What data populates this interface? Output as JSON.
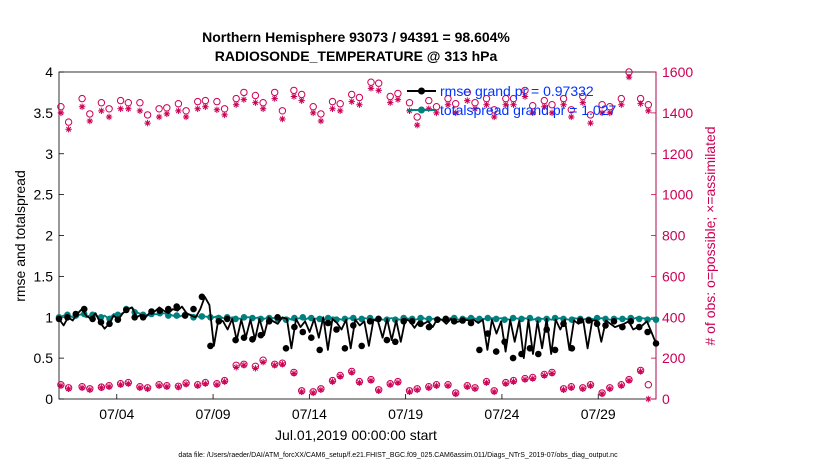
{
  "chart_data": {
    "type": "line",
    "title_line1": "Northern Hemisphere 93073 / 94391 = 98.604%",
    "title_line2": "RADIOSONDE_TEMPERATURE @ 313 hPa",
    "xlabel": "Jul.01,2019 00:00:00 start",
    "ylabel_left": "rmse and totalspread",
    "ylabel_right": "# of obs: o=possible; ×=assimilated",
    "footer": "data file: /Users/raeder/DAI/ATM_forcXX/CAM6_setup/f.e21.FHIST_BGC.f09_025.CAM6assim.011/Diags_NTrS_2019-07/obs_diag_output.nc",
    "xlim": [
      1,
      32
    ],
    "ylim_left": [
      0,
      4
    ],
    "ylim_right": [
      0,
      1600
    ],
    "x_ticks": [
      4,
      9,
      14,
      19,
      24,
      29
    ],
    "x_tick_labels": [
      "07/04",
      "07/09",
      "07/14",
      "07/19",
      "07/24",
      "07/29"
    ],
    "yticks_left": [
      "0",
      "0.5",
      "1",
      "1.5",
      "2",
      "2.5",
      "3",
      "3.5",
      "4"
    ],
    "yticks_right": [
      "0",
      "200",
      "400",
      "600",
      "800",
      "1000",
      "1200",
      "1400",
      "1600"
    ],
    "colors": {
      "rmse": "#000000",
      "spread": "#00807f",
      "obs": "#cc0055",
      "legend_text": "#0033ff"
    },
    "series": [
      {
        "name": "rmse",
        "legend": "rmse grand pr = 0.97332",
        "axis": "left",
        "values": [
          0.98,
          0.9,
          1.0,
          0.96,
          1.04,
          1.1,
          1.02,
          0.98,
          1.05,
          0.94,
          0.86,
          0.92,
          1.02,
          0.97,
          1.05,
          1.09,
          1.12,
          1.0,
          1.03,
          1.0,
          1.06,
          1.07,
          1.12,
          1.08,
          1.05,
          1.1,
          1.08,
          1.13,
          1.05,
          1.02,
          1.0,
          1.1,
          1.25,
          1.15,
          0.65,
          0.98,
          0.95,
          0.85,
          0.98,
          0.72,
          0.97,
          0.75,
          0.97,
          0.73,
          0.98,
          0.78,
          1.0,
          0.95,
          0.92,
          1.0,
          0.98,
          0.62,
          0.98,
          0.88,
          0.95,
          0.82,
          0.98,
          0.75,
          1.0,
          0.6,
          0.98,
          0.93,
          0.85,
          0.97,
          0.62,
          0.97,
          0.9,
          0.95,
          0.65,
          0.97,
          0.95,
          0.75,
          0.98,
          0.72,
          0.96,
          0.7,
          0.98,
          0.95,
          0.87,
          0.95,
          0.92,
          0.95,
          0.88,
          0.98,
          0.97,
          0.92,
          0.98,
          0.94,
          0.95,
          0.97,
          0.96,
          0.97,
          0.93,
          0.97,
          0.6,
          0.97,
          0.8,
          0.95,
          0.58,
          0.97,
          0.7,
          0.96,
          0.5,
          0.97,
          0.55,
          0.95,
          0.62,
          0.98,
          0.55,
          0.97,
          0.85,
          0.97,
          0.6,
          0.96,
          0.92,
          0.97,
          0.62,
          0.96,
          0.96,
          0.7,
          0.96,
          0.92,
          0.88,
          0.9,
          0.92,
          0.95,
          0.85,
          0.88,
          0.9,
          0.95,
          0.82,
          0.68
        ],
        "markers": [
          0.98,
          1.0,
          1.04,
          1.1,
          0.98,
          0.94,
          0.92,
          0.97,
          1.09,
          1.0,
          1.0,
          1.07,
          1.08,
          1.1,
          1.13,
          1.02,
          1.1,
          1.25,
          0.65,
          0.95,
          0.98,
          0.72,
          0.75,
          0.73,
          0.78,
          0.95,
          1.0,
          0.62,
          0.88,
          0.82,
          0.75,
          0.6,
          0.93,
          0.85,
          0.62,
          0.9,
          0.65,
          0.95,
          0.98,
          0.72,
          0.7,
          0.95,
          0.95,
          0.92,
          0.88,
          0.97,
          0.98,
          0.95,
          0.96,
          0.93,
          0.6,
          0.8,
          0.58,
          0.7,
          0.5,
          0.55,
          0.62,
          0.55,
          0.85,
          0.6,
          0.92,
          0.62,
          0.96,
          0.96,
          0.92,
          0.9,
          0.95,
          0.88,
          0.95,
          0.88,
          0.82,
          0.68
        ]
      },
      {
        "name": "totalspread",
        "legend": "totalspread grand pr = 1.027",
        "axis": "left",
        "values": [
          1.0,
          1.02,
          1.03,
          1.0,
          1.02,
          1.04,
          1.0,
          1.03,
          1.02,
          1.0,
          1.02,
          0.98,
          1.04,
          1.03,
          1.05,
          1.1,
          1.12,
          1.06,
          1.04,
          1.03,
          1.02,
          1.04,
          1.03,
          1.05,
          1.04,
          1.02,
          1.0,
          1.02,
          1.04,
          1.03,
          1.02,
          1.0,
          1.01,
          1.0,
          1.0,
          1.02,
          0.99,
          0.98,
          1.0,
          0.99,
          0.98,
          1.0,
          1.0,
          0.99,
          1.0,
          0.98,
          1.0,
          0.99,
          1.0,
          0.98,
          1.0,
          0.97,
          0.98,
          0.99,
          0.97,
          1.0,
          0.98,
          0.99,
          0.97,
          0.98,
          1.0,
          0.99,
          0.97,
          0.98,
          0.99,
          0.97,
          0.98,
          0.99,
          0.98,
          0.97,
          0.99,
          0.97,
          0.98,
          0.99,
          0.98,
          0.97,
          0.99,
          0.98,
          0.97,
          0.98,
          0.99,
          0.97,
          0.98,
          0.99,
          0.97,
          0.98,
          0.99,
          0.98,
          0.97,
          0.99,
          0.98,
          0.99,
          0.97,
          0.98,
          0.98,
          0.99,
          0.98,
          0.99,
          0.98,
          0.97,
          0.99,
          0.98,
          0.99,
          0.98,
          0.97,
          0.99,
          0.98,
          0.99,
          0.97,
          0.98,
          0.99,
          0.98,
          0.97,
          0.99,
          0.98,
          0.97,
          0.99,
          0.98,
          0.97,
          0.99,
          0.98,
          0.97,
          0.99,
          0.98,
          0.99,
          0.97,
          0.98,
          1.0,
          0.99,
          0.98,
          0.98,
          0.97
        ],
        "markers": [
          1.0,
          1.03,
          1.02,
          1.04,
          1.03,
          1.0,
          0.98,
          1.03,
          1.1,
          1.06,
          1.03,
          1.04,
          1.05,
          1.02,
          1.02,
          1.03,
          1.0,
          1.01,
          1.0,
          0.99,
          1.0,
          0.98,
          1.0,
          0.99,
          0.98,
          0.99,
          0.98,
          0.97,
          0.99,
          1.0,
          0.99,
          0.98,
          0.99,
          0.97,
          0.98,
          0.99,
          0.98,
          0.99,
          0.98,
          0.97,
          0.97,
          0.99,
          0.98,
          0.99,
          0.98,
          0.97,
          0.98,
          0.99,
          0.98,
          0.99,
          0.98,
          0.99,
          0.98,
          0.97,
          0.99,
          0.98,
          0.99,
          0.97,
          0.98,
          0.99,
          0.98,
          0.97,
          0.98,
          0.97,
          0.99,
          0.98,
          0.98,
          0.98,
          0.99,
          0.98,
          0.97,
          0.97
        ]
      },
      {
        "name": "obs_possible",
        "axis": "right",
        "marker": "circle",
        "x": [
          1.1,
          1.5,
          2.2,
          2.6,
          3.2,
          3.6,
          4.2,
          4.6,
          5.2,
          5.6,
          6.2,
          6.6,
          7.2,
          7.6,
          8.2,
          8.6,
          9.2,
          9.6,
          10.2,
          10.6,
          11.2,
          11.6,
          12.2,
          12.6,
          13.2,
          13.6,
          14.2,
          14.6,
          15.2,
          15.6,
          16.2,
          16.6,
          17.2,
          17.6,
          18.2,
          18.6,
          19.2,
          19.6,
          20.2,
          20.6,
          21.2,
          21.6,
          22.2,
          22.6,
          23.2,
          23.6,
          24.2,
          24.6,
          25.2,
          25.6,
          26.2,
          26.6,
          27.2,
          27.6,
          28.2,
          28.6,
          29.2,
          29.6,
          30.2,
          30.6,
          31.2,
          31.6
        ],
        "values": [
          1430,
          1355,
          1470,
          1395,
          1450,
          1420,
          1460,
          1450,
          1450,
          1390,
          1420,
          1425,
          1445,
          1410,
          1455,
          1460,
          1455,
          1420,
          1470,
          1500,
          1485,
          1450,
          1500,
          1410,
          1510,
          1490,
          1430,
          1395,
          1455,
          1445,
          1490,
          1475,
          1550,
          1545,
          1480,
          1495,
          1450,
          1380,
          1460,
          1430,
          1470,
          1445,
          1500,
          1450,
          1470,
          1415,
          1470,
          1470,
          1510,
          1435,
          1460,
          1440,
          1470,
          1415,
          1480,
          1390,
          1440,
          1430,
          1470,
          1600,
          1470,
          1440
        ],
        "low_x": [
          1.1,
          1.5,
          2.2,
          2.6,
          3.2,
          3.6,
          4.2,
          4.6,
          5.2,
          5.6,
          6.2,
          6.6,
          7.2,
          7.6,
          8.2,
          8.6,
          9.2,
          9.6,
          10.2,
          10.6,
          11.2,
          11.6,
          12.2,
          12.6,
          13.2,
          13.6,
          14.2,
          14.6,
          15.2,
          15.6,
          16.2,
          16.6,
          17.2,
          17.6,
          18.2,
          18.6,
          19.2,
          19.6,
          20.2,
          20.6,
          21.2,
          21.6,
          22.2,
          22.6,
          23.2,
          23.6,
          24.2,
          24.6,
          25.2,
          25.6,
          26.2,
          26.6,
          27.2,
          27.6,
          28.2,
          28.6,
          29.2,
          29.6,
          30.2,
          30.6,
          31.2,
          31.6
        ],
        "low_values": [
          70,
          55,
          60,
          50,
          58,
          65,
          75,
          80,
          60,
          55,
          70,
          65,
          62,
          78,
          70,
          80,
          75,
          90,
          165,
          170,
          160,
          190,
          170,
          175,
          130,
          40,
          35,
          50,
          90,
          115,
          135,
          85,
          95,
          45,
          75,
          85,
          40,
          50,
          60,
          70,
          70,
          30,
          65,
          55,
          85,
          40,
          80,
          90,
          100,
          105,
          120,
          130,
          50,
          60,
          55,
          70,
          30,
          55,
          70,
          95,
          140,
          70
        ]
      },
      {
        "name": "obs_assimilated",
        "axis": "right",
        "marker": "star",
        "x": [
          1.1,
          1.5,
          2.2,
          2.6,
          3.2,
          3.6,
          4.2,
          4.6,
          5.2,
          5.6,
          6.2,
          6.6,
          7.2,
          7.6,
          8.2,
          8.6,
          9.2,
          9.6,
          10.2,
          10.6,
          11.2,
          11.6,
          12.2,
          12.6,
          13.2,
          13.6,
          14.2,
          14.6,
          15.2,
          15.6,
          16.2,
          16.6,
          17.2,
          17.6,
          18.2,
          18.6,
          19.2,
          19.6,
          20.2,
          20.6,
          21.2,
          21.6,
          22.2,
          22.6,
          23.2,
          23.6,
          24.2,
          24.6,
          25.2,
          25.6,
          26.2,
          26.6,
          27.2,
          27.6,
          28.2,
          28.6,
          29.2,
          29.6,
          30.2,
          30.6,
          31.2,
          31.6
        ],
        "values": [
          1400,
          1320,
          1430,
          1360,
          1410,
          1380,
          1420,
          1420,
          1410,
          1350,
          1380,
          1395,
          1410,
          1380,
          1420,
          1430,
          1415,
          1390,
          1440,
          1465,
          1450,
          1420,
          1470,
          1370,
          1480,
          1460,
          1400,
          1360,
          1420,
          1410,
          1455,
          1440,
          1520,
          1510,
          1450,
          1465,
          1410,
          1340,
          1420,
          1400,
          1440,
          1400,
          1460,
          1420,
          1440,
          1380,
          1440,
          1440,
          1480,
          1400,
          1430,
          1400,
          1440,
          1380,
          1450,
          1350,
          1400,
          1400,
          1440,
          1575,
          1445,
          1410
        ],
        "low_x": [
          1.1,
          1.5,
          2.2,
          2.6,
          3.2,
          3.6,
          4.2,
          4.6,
          5.2,
          5.6,
          6.2,
          6.6,
          7.2,
          7.6,
          8.2,
          8.6,
          9.2,
          9.6,
          10.2,
          10.6,
          11.2,
          11.6,
          12.2,
          12.6,
          13.2,
          13.6,
          14.2,
          14.6,
          15.2,
          15.6,
          16.2,
          16.6,
          17.2,
          17.6,
          18.2,
          18.6,
          19.2,
          19.6,
          20.2,
          20.6,
          21.2,
          21.6,
          22.2,
          22.6,
          23.2,
          23.6,
          24.2,
          24.6,
          25.2,
          25.6,
          26.2,
          26.6,
          27.2,
          27.6,
          28.2,
          28.6,
          29.2,
          29.6,
          30.2,
          30.6,
          31.2,
          31.6
        ],
        "low_values": [
          65,
          50,
          55,
          45,
          55,
          60,
          70,
          75,
          55,
          50,
          65,
          60,
          58,
          72,
          65,
          75,
          70,
          85,
          155,
          165,
          150,
          180,
          165,
          170,
          125,
          35,
          30,
          45,
          85,
          110,
          130,
          80,
          90,
          40,
          70,
          80,
          35,
          45,
          55,
          65,
          65,
          25,
          60,
          50,
          80,
          35,
          75,
          85,
          95,
          100,
          115,
          125,
          45,
          55,
          50,
          65,
          25,
          50,
          65,
          90,
          135,
          0
        ]
      }
    ]
  }
}
